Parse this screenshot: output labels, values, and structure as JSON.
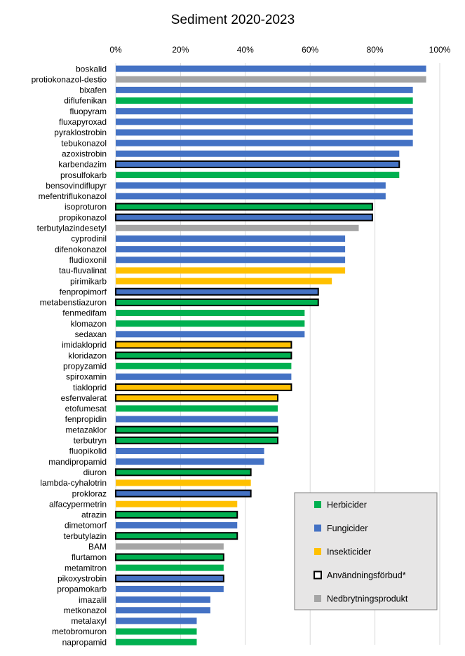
{
  "chart_data": {
    "type": "bar",
    "orientation": "horizontal",
    "title": "Sediment 2020-2023",
    "x_ticks": [
      "0%",
      "20%",
      "40%",
      "60%",
      "80%",
      "100%"
    ],
    "xlim": [
      0,
      100
    ],
    "xlabel": "",
    "ylabel": "",
    "grid": "vertical",
    "axis_position": "top",
    "legend_position": "bottom-right",
    "legend": [
      {
        "key": "herb",
        "label": "Herbicider",
        "color": "#00B050",
        "outline": false
      },
      {
        "key": "fung",
        "label": "Fungicider",
        "color": "#4472C4",
        "outline": false
      },
      {
        "key": "ins",
        "label": "Insekticider",
        "color": "#FFC000",
        "outline": false
      },
      {
        "key": "ban",
        "label": "Användningsförbud*",
        "color": "#FFFFFF",
        "outline": true
      },
      {
        "key": "deg",
        "label": "Nedbrytningsprodukt",
        "color": "#A5A5A5",
        "outline": false
      }
    ],
    "colors": {
      "herb": "#00B050",
      "fung": "#4472C4",
      "ins": "#FFC000",
      "deg": "#A5A5A5",
      "ban_outline": "#000000"
    },
    "bars": [
      {
        "label": "boskalid",
        "value": 95.8,
        "group": "fung",
        "banned": false
      },
      {
        "label": "protiokonazol-destio",
        "value": 95.8,
        "group": "deg",
        "banned": false
      },
      {
        "label": "bixafen",
        "value": 91.7,
        "group": "fung",
        "banned": false
      },
      {
        "label": "diflufenikan",
        "value": 91.7,
        "group": "herb",
        "banned": false
      },
      {
        "label": "fluopyram",
        "value": 91.7,
        "group": "fung",
        "banned": false
      },
      {
        "label": "fluxapyroxad",
        "value": 91.7,
        "group": "fung",
        "banned": false
      },
      {
        "label": "pyraklostrobin",
        "value": 91.7,
        "group": "fung",
        "banned": false
      },
      {
        "label": "tebukonazol",
        "value": 91.7,
        "group": "fung",
        "banned": false
      },
      {
        "label": "azoxistrobin",
        "value": 87.5,
        "group": "fung",
        "banned": false
      },
      {
        "label": "karbendazim",
        "value": 87.5,
        "group": "fung",
        "banned": true
      },
      {
        "label": "prosulfokarb",
        "value": 87.5,
        "group": "herb",
        "banned": false
      },
      {
        "label": "bensovindiflupyr",
        "value": 83.3,
        "group": "fung",
        "banned": false
      },
      {
        "label": "mefentriflukonazol",
        "value": 83.3,
        "group": "fung",
        "banned": false
      },
      {
        "label": "isoproturon",
        "value": 79.2,
        "group": "herb",
        "banned": true
      },
      {
        "label": "propikonazol",
        "value": 79.2,
        "group": "fung",
        "banned": true
      },
      {
        "label": "terbutylazindesetyl",
        "value": 75.0,
        "group": "deg",
        "banned": false
      },
      {
        "label": "cyprodinil",
        "value": 70.8,
        "group": "fung",
        "banned": false
      },
      {
        "label": "difenokonazol",
        "value": 70.8,
        "group": "fung",
        "banned": false
      },
      {
        "label": "fludioxonil",
        "value": 70.8,
        "group": "fung",
        "banned": false
      },
      {
        "label": "tau-fluvalinat",
        "value": 70.8,
        "group": "ins",
        "banned": false
      },
      {
        "label": "pirimikarb",
        "value": 66.7,
        "group": "ins",
        "banned": false
      },
      {
        "label": "fenpropimorf",
        "value": 62.5,
        "group": "fung",
        "banned": true
      },
      {
        "label": "metabenstiazuron",
        "value": 62.5,
        "group": "herb",
        "banned": true
      },
      {
        "label": "fenmedifam",
        "value": 58.3,
        "group": "herb",
        "banned": false
      },
      {
        "label": "klomazon",
        "value": 58.3,
        "group": "herb",
        "banned": false
      },
      {
        "label": "sedaxan",
        "value": 58.3,
        "group": "fung",
        "banned": false
      },
      {
        "label": "imidakloprid",
        "value": 54.2,
        "group": "ins",
        "banned": true
      },
      {
        "label": "kloridazon",
        "value": 54.2,
        "group": "herb",
        "banned": true
      },
      {
        "label": "propyzamid",
        "value": 54.2,
        "group": "herb",
        "banned": false
      },
      {
        "label": "spiroxamin",
        "value": 54.2,
        "group": "fung",
        "banned": false
      },
      {
        "label": "tiakloprid",
        "value": 54.2,
        "group": "ins",
        "banned": true
      },
      {
        "label": "esfenvalerat",
        "value": 50.0,
        "group": "ins",
        "banned": true
      },
      {
        "label": "etofumesat",
        "value": 50.0,
        "group": "herb",
        "banned": false
      },
      {
        "label": "fenpropidin",
        "value": 50.0,
        "group": "fung",
        "banned": false
      },
      {
        "label": "metazaklor",
        "value": 50.0,
        "group": "herb",
        "banned": true
      },
      {
        "label": "terbutryn",
        "value": 50.0,
        "group": "herb",
        "banned": true
      },
      {
        "label": "fluopikolid",
        "value": 45.8,
        "group": "fung",
        "banned": false
      },
      {
        "label": "mandipropamid",
        "value": 45.8,
        "group": "fung",
        "banned": false
      },
      {
        "label": "diuron",
        "value": 41.7,
        "group": "herb",
        "banned": true
      },
      {
        "label": "lambda-cyhalotrin",
        "value": 41.7,
        "group": "ins",
        "banned": false
      },
      {
        "label": "prokloraz",
        "value": 41.7,
        "group": "fung",
        "banned": true
      },
      {
        "label": "alfacypermetrin",
        "value": 37.5,
        "group": "ins",
        "banned": false
      },
      {
        "label": "atrazin",
        "value": 37.5,
        "group": "herb",
        "banned": true
      },
      {
        "label": "dimetomorf",
        "value": 37.5,
        "group": "fung",
        "banned": false
      },
      {
        "label": "terbutylazin",
        "value": 37.5,
        "group": "herb",
        "banned": true
      },
      {
        "label": "BAM",
        "value": 33.3,
        "group": "deg",
        "banned": false
      },
      {
        "label": "flurtamon",
        "value": 33.3,
        "group": "herb",
        "banned": true
      },
      {
        "label": "metamitron",
        "value": 33.3,
        "group": "herb",
        "banned": false
      },
      {
        "label": "pikoxystrobin",
        "value": 33.3,
        "group": "fung",
        "banned": true
      },
      {
        "label": "propamokarb",
        "value": 33.3,
        "group": "fung",
        "banned": false
      },
      {
        "label": "imazalil",
        "value": 29.2,
        "group": "fung",
        "banned": false
      },
      {
        "label": "metkonazol",
        "value": 29.2,
        "group": "fung",
        "banned": false
      },
      {
        "label": "metalaxyl",
        "value": 25.0,
        "group": "fung",
        "banned": false
      },
      {
        "label": "metobromuron",
        "value": 25.0,
        "group": "herb",
        "banned": false
      },
      {
        "label": "napropamid",
        "value": 25.0,
        "group": "herb",
        "banned": false
      }
    ]
  }
}
